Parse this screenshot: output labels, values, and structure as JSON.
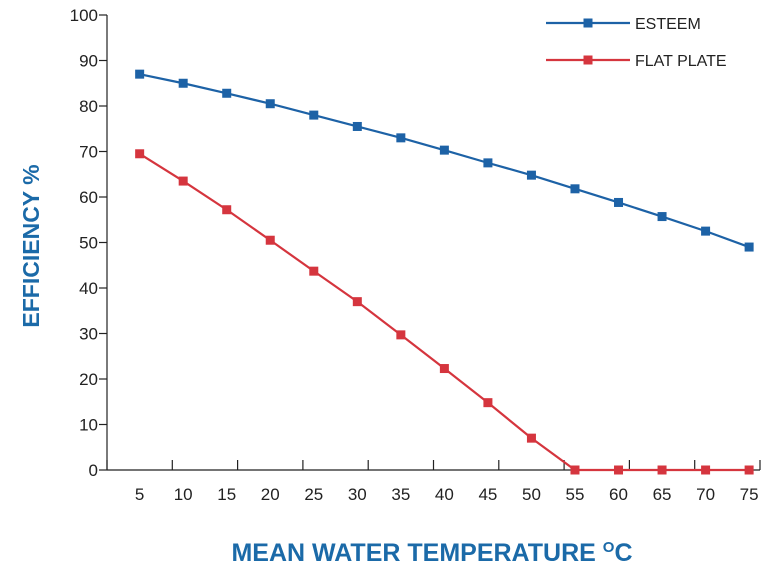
{
  "chart_data": {
    "type": "line",
    "title": "",
    "xlabel": "MEAN WATER TEMPERATURE",
    "xlabel_unit": "C",
    "xlabel_unit_prefix": "O",
    "ylabel": "EFFICIENCY %",
    "x": [
      5,
      10,
      15,
      20,
      25,
      30,
      35,
      40,
      45,
      50,
      55,
      60,
      65,
      70,
      75
    ],
    "xlim": [
      0,
      75
    ],
    "ylim": [
      0,
      100
    ],
    "yticks": [
      0,
      10,
      20,
      30,
      40,
      50,
      60,
      70,
      80,
      90,
      100
    ],
    "grid": false,
    "legend_position": "top-right",
    "series": [
      {
        "name": "ESTEEM",
        "color": "#1d62a6",
        "values": [
          87,
          85,
          82.8,
          80.5,
          78,
          75.5,
          73,
          70.3,
          67.5,
          64.8,
          61.8,
          58.8,
          55.7,
          52.5,
          49
        ]
      },
      {
        "name": "FLAT PLATE",
        "color": "#d5353e",
        "values": [
          69.5,
          63.5,
          57.2,
          50.5,
          43.7,
          37,
          29.7,
          22.3,
          14.8,
          7,
          0,
          0,
          0,
          0,
          0
        ]
      }
    ]
  }
}
